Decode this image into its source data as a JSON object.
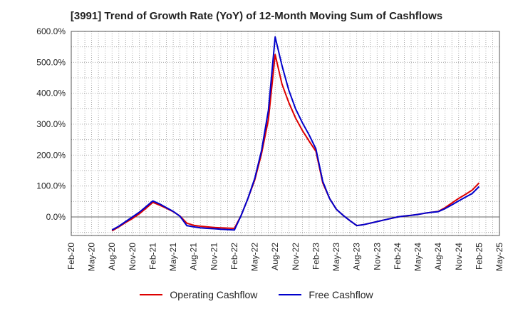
{
  "chart_data": {
    "type": "line",
    "title": "[3991]  Trend of Growth Rate (YoY) of 12-Month Moving Sum of Cashflows",
    "xlabel": "",
    "ylabel": "",
    "x_tick_labels": [
      "Feb-20",
      "May-20",
      "Aug-20",
      "Nov-20",
      "Feb-21",
      "May-21",
      "Aug-21",
      "Nov-21",
      "Feb-22",
      "May-22",
      "Aug-22",
      "Nov-22",
      "Feb-23",
      "May-23",
      "Aug-23",
      "Nov-23",
      "Feb-24",
      "May-24",
      "Aug-24",
      "Nov-24",
      "Feb-25",
      "May-25"
    ],
    "y_tick_labels": [
      "0.0%",
      "100.0%",
      "200.0%",
      "300.0%",
      "400.0%",
      "500.0%",
      "600.0%"
    ],
    "y_ticks": [
      0,
      100,
      200,
      300,
      400,
      500,
      600
    ],
    "ylim": [
      -60,
      600
    ],
    "x_range": [
      "2020-02",
      "2025-05"
    ],
    "grid": true,
    "legend_position": "bottom",
    "x": [
      "2020-08",
      "2020-09",
      "2020-10",
      "2020-11",
      "2020-12",
      "2021-01",
      "2021-02",
      "2021-03",
      "2021-04",
      "2021-05",
      "2021-06",
      "2021-07",
      "2021-08",
      "2021-09",
      "2021-10",
      "2021-11",
      "2021-12",
      "2022-01",
      "2022-02",
      "2022-03",
      "2022-04",
      "2022-05",
      "2022-06",
      "2022-07",
      "2022-08",
      "2022-09",
      "2022-10",
      "2022-11",
      "2022-12",
      "2023-01",
      "2023-02",
      "2023-03",
      "2023-04",
      "2023-05",
      "2023-06",
      "2023-07",
      "2023-08",
      "2023-09",
      "2023-10",
      "2023-11",
      "2023-12",
      "2024-01",
      "2024-02",
      "2024-03",
      "2024-04",
      "2024-05",
      "2024-06",
      "2024-07",
      "2024-08",
      "2024-09",
      "2024-10",
      "2024-11",
      "2024-12",
      "2025-01",
      "2025-02"
    ],
    "series": [
      {
        "name": "Operating Cashflow",
        "color": "#dd0000",
        "values": [
          -45,
          -32,
          -18,
          -5,
          10,
          28,
          47,
          38,
          28,
          17,
          3,
          -20,
          -27,
          -30,
          -32,
          -34,
          -35,
          -36,
          -37,
          5,
          60,
          120,
          205,
          315,
          525,
          430,
          370,
          320,
          280,
          245,
          212,
          110,
          60,
          25,
          5,
          -12,
          -28,
          -25,
          -20,
          -15,
          -10,
          -5,
          0,
          3,
          5,
          8,
          12,
          15,
          18,
          30,
          45,
          60,
          73,
          87,
          110
        ]
      },
      {
        "name": "Free Cashflow",
        "color": "#0000cc",
        "values": [
          -42,
          -30,
          -15,
          0,
          15,
          33,
          52,
          42,
          30,
          18,
          2,
          -28,
          -32,
          -35,
          -37,
          -38,
          -40,
          -41,
          -42,
          5,
          60,
          125,
          215,
          345,
          582,
          490,
          410,
          350,
          305,
          265,
          220,
          115,
          60,
          25,
          5,
          -12,
          -28,
          -25,
          -20,
          -15,
          -10,
          -5,
          0,
          3,
          5,
          8,
          12,
          15,
          17,
          27,
          39,
          52,
          64,
          76,
          98
        ]
      }
    ]
  }
}
